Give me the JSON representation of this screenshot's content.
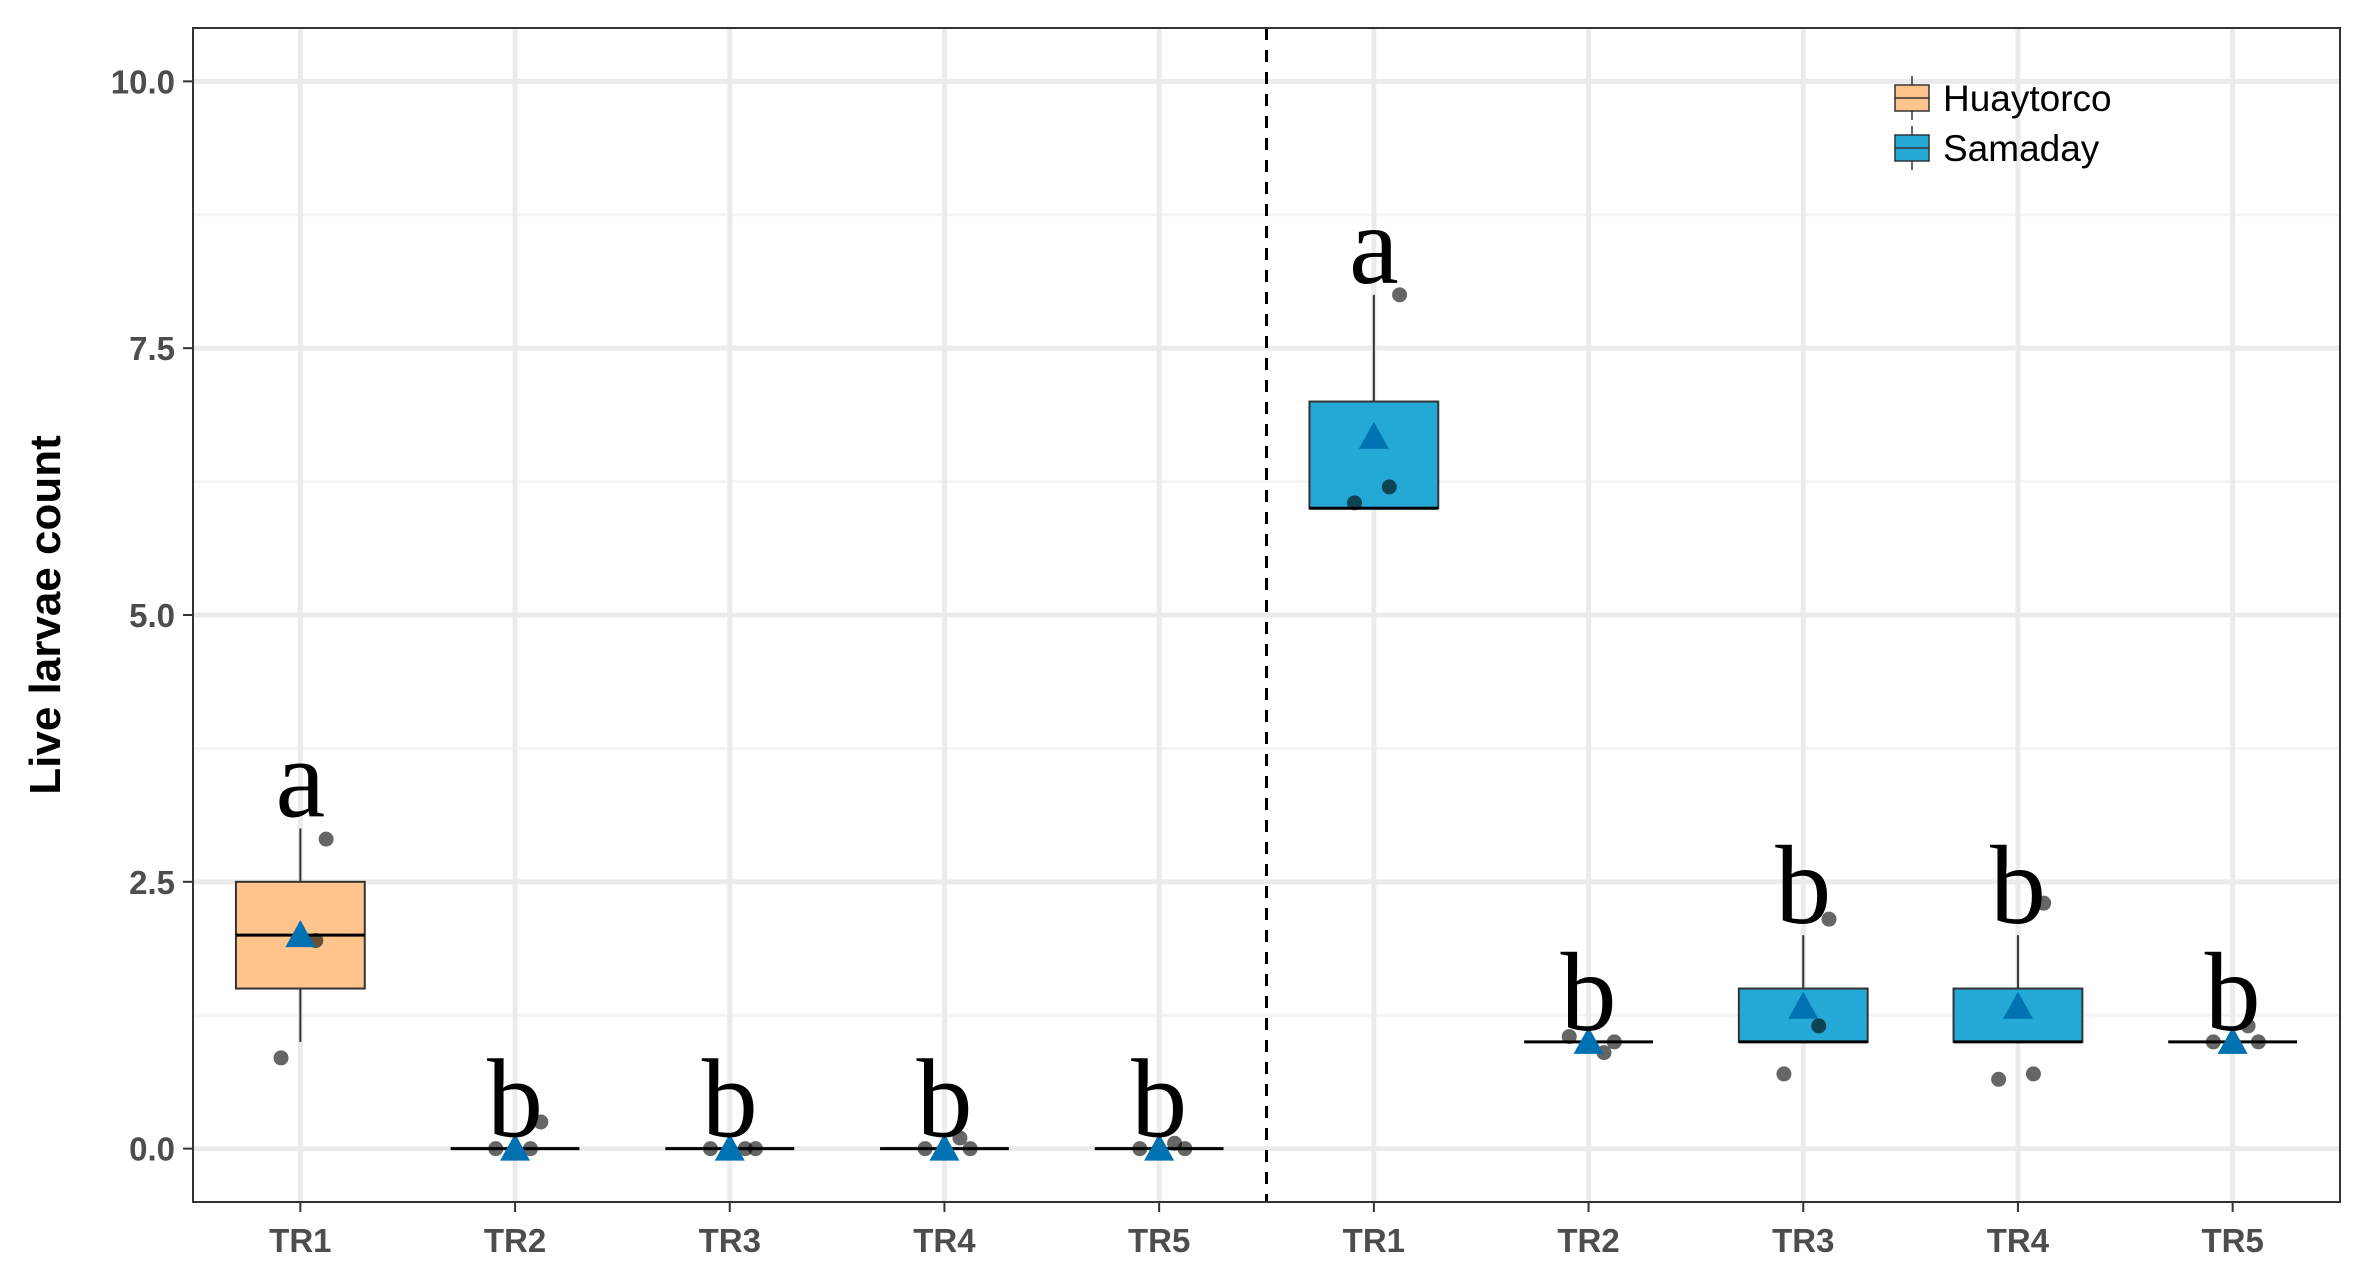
{
  "chart_data": {
    "type": "boxplot",
    "ylabel": "Live larvae count",
    "ylim": [
      -0.5,
      10.5
    ],
    "yticks": [
      0.0,
      2.5,
      5.0,
      7.5,
      10.0
    ],
    "ytick_labels": [
      "0.0",
      "2.5",
      "5.0",
      "7.5",
      "10.0"
    ],
    "grid": true,
    "legend_position": "top-right",
    "divider_after_index": 4,
    "series": [
      {
        "name": "Huaytorco",
        "color": "#FFC48C",
        "groups": [
          {
            "label": "TR1",
            "min": 1.0,
            "q1": 1.5,
            "median": 2.0,
            "q3": 2.5,
            "max": 3.0,
            "mean": 2.0,
            "letter": "a",
            "points": [
              0.85,
              1.95,
              2.9
            ]
          },
          {
            "label": "TR2",
            "min": 0.0,
            "q1": 0.0,
            "median": 0.0,
            "q3": 0.0,
            "max": 0.0,
            "mean": 0.0,
            "letter": "b",
            "points": [
              0.0,
              0.0,
              0.25
            ]
          },
          {
            "label": "TR3",
            "min": 0.0,
            "q1": 0.0,
            "median": 0.0,
            "q3": 0.0,
            "max": 0.0,
            "mean": 0.0,
            "letter": "b",
            "points": [
              0.0,
              0.0,
              0.0
            ]
          },
          {
            "label": "TR4",
            "min": 0.0,
            "q1": 0.0,
            "median": 0.0,
            "q3": 0.0,
            "max": 0.0,
            "mean": 0.0,
            "letter": "b",
            "points": [
              0.0,
              0.1,
              0.0
            ]
          },
          {
            "label": "TR5",
            "min": 0.0,
            "q1": 0.0,
            "median": 0.0,
            "q3": 0.0,
            "max": 0.0,
            "mean": 0.0,
            "letter": "b",
            "points": [
              0.0,
              0.05,
              0.0
            ]
          }
        ]
      },
      {
        "name": "Samaday",
        "color": "#24A9D6",
        "groups": [
          {
            "label": "TR1",
            "min": 6.0,
            "q1": 6.0,
            "median": 6.0,
            "q3": 7.0,
            "max": 8.0,
            "mean": 6.67,
            "letter": "a",
            "points": [
              6.05,
              6.2,
              8.0
            ]
          },
          {
            "label": "TR2",
            "min": 1.0,
            "q1": 1.0,
            "median": 1.0,
            "q3": 1.0,
            "max": 1.0,
            "mean": 1.0,
            "letter": "b",
            "points": [
              1.05,
              0.9,
              1.0
            ]
          },
          {
            "label": "TR3",
            "min": 1.0,
            "q1": 1.0,
            "median": 1.0,
            "q3": 1.5,
            "max": 2.0,
            "mean": 1.33,
            "letter": "b",
            "points": [
              0.7,
              1.15,
              2.15
            ]
          },
          {
            "label": "TR4",
            "min": 1.0,
            "q1": 1.0,
            "median": 1.0,
            "q3": 1.5,
            "max": 2.0,
            "mean": 1.33,
            "letter": "b",
            "points": [
              0.65,
              0.7,
              2.3
            ]
          },
          {
            "label": "TR5",
            "min": 1.0,
            "q1": 1.0,
            "median": 1.0,
            "q3": 1.0,
            "max": 1.0,
            "mean": 1.0,
            "letter": "b",
            "points": [
              1.0,
              1.15,
              1.0
            ]
          }
        ]
      }
    ],
    "mean_marker_color": "#0072B2"
  }
}
